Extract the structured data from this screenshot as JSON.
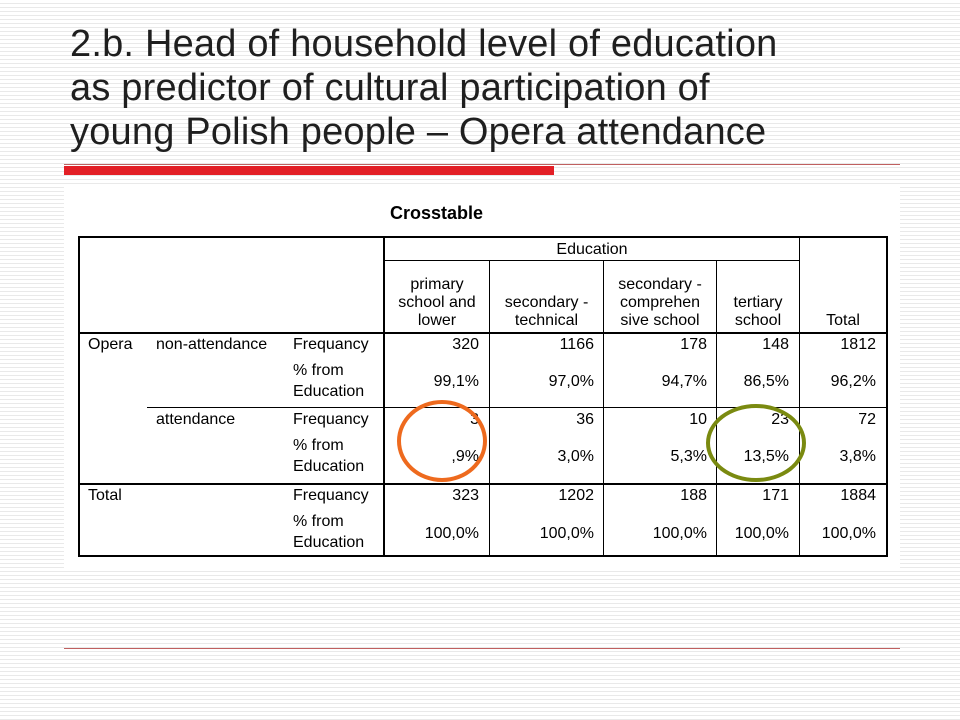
{
  "slide": {
    "title_lines": [
      "2.b. Head of household level of education",
      "as predictor of cultural participation of",
      "young Polish people – Opera attendance"
    ],
    "accent_color": "#e31f26"
  },
  "crosstab": {
    "title": "Crosstable",
    "education_header": "Education",
    "columns": [
      [
        "primary",
        "school and",
        "lower"
      ],
      [
        "secondary -",
        "technical"
      ],
      [
        "secondary -",
        "comprehen",
        "sive school"
      ],
      [
        "tertiary",
        "school"
      ],
      [
        "Total"
      ]
    ],
    "row_var": "Opera",
    "groups": [
      {
        "label": "non-attendance",
        "freq_label": "Frequancy",
        "pct_label": [
          "% from",
          "Education"
        ],
        "freq": [
          "320",
          "1166",
          "178",
          "148",
          "1812"
        ],
        "pct": [
          "99,1%",
          "97,0%",
          "94,7%",
          "86,5%",
          "96,2%"
        ]
      },
      {
        "label": "attendance",
        "freq_label": "Frequancy",
        "pct_label": [
          "% from",
          "Education"
        ],
        "freq": [
          "3",
          "36",
          "10",
          "23",
          "72"
        ],
        "pct": [
          ",9%",
          "3,0%",
          "5,3%",
          "13,5%",
          "3,8%"
        ]
      }
    ],
    "total": {
      "label": "Total",
      "freq_label": "Frequancy",
      "pct_label": [
        "% from",
        "Education"
      ],
      "freq": [
        "323",
        "1202",
        "188",
        "171",
        "1884"
      ],
      "pct": [
        "100,0%",
        "100,0%",
        "100,0%",
        "100,0%",
        "100,0%"
      ]
    },
    "highlights": [
      {
        "name": "orange",
        "color": "#ee6a1e"
      },
      {
        "name": "olive",
        "color": "#7a8a10"
      }
    ]
  }
}
